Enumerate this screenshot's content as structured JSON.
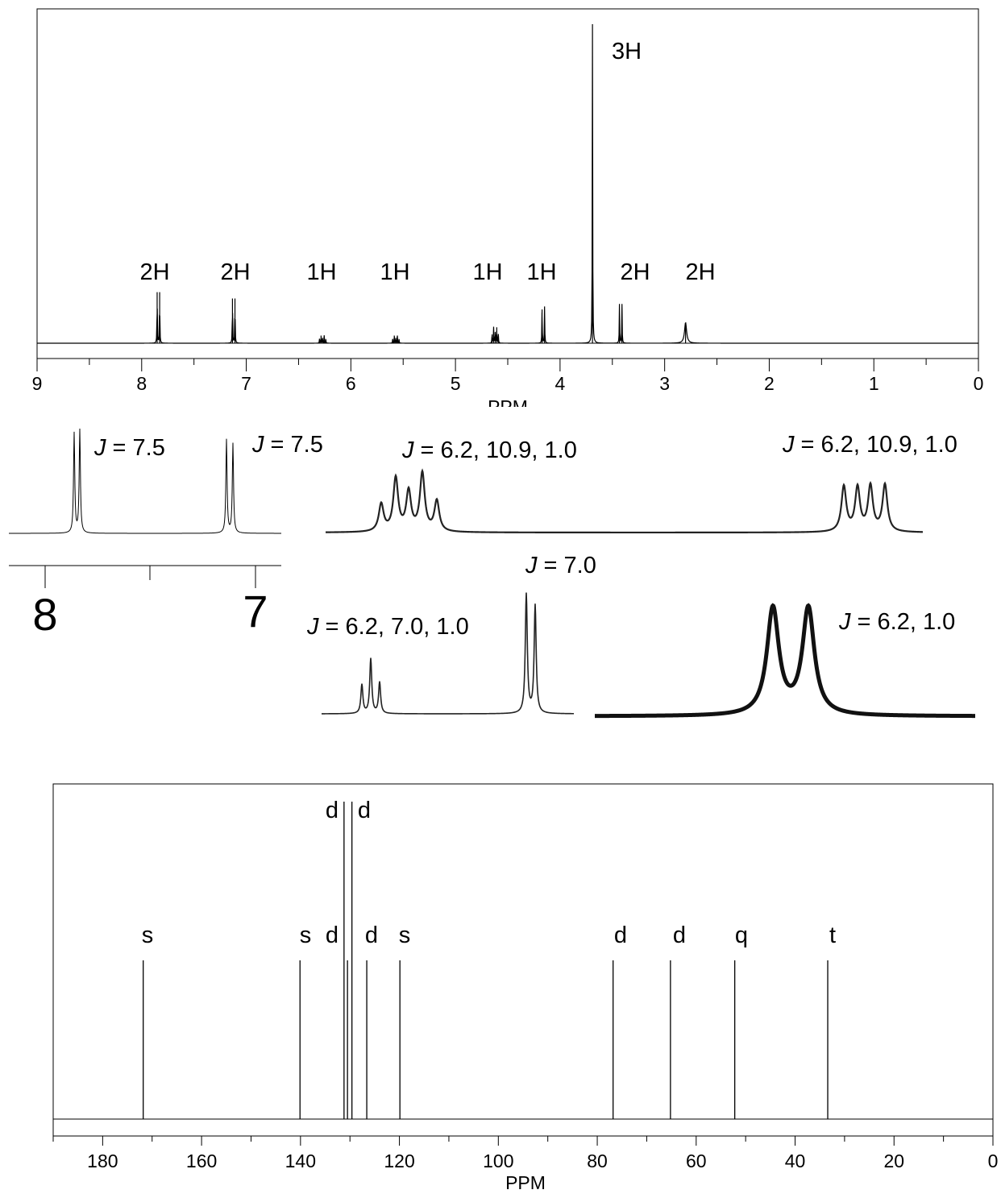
{
  "chart_data": [
    {
      "type": "line",
      "title": "",
      "xlabel": "PPM",
      "ylabel": "",
      "xlim": [
        9,
        0
      ],
      "x_ticks": [
        "9",
        "8",
        "7",
        "6",
        "5",
        "4",
        "3",
        "2",
        "1",
        "0"
      ],
      "grid": false,
      "peaks": [
        {
          "ppm": 7.84,
          "height": 0.16,
          "mult": "d",
          "integration": "2H"
        },
        {
          "ppm": 7.12,
          "height": 0.14,
          "mult": "d",
          "integration": "2H"
        },
        {
          "ppm": 6.27,
          "height": 0.024,
          "mult": "ddd",
          "integration": "1H"
        },
        {
          "ppm": 5.57,
          "height": 0.024,
          "mult": "ddd",
          "integration": "1H"
        },
        {
          "ppm": 4.62,
          "height": 0.05,
          "mult": "ddd",
          "integration": "1H"
        },
        {
          "ppm": 4.16,
          "height": 0.115,
          "mult": "dd",
          "integration": "1H"
        },
        {
          "ppm": 3.69,
          "height": 1.0,
          "mult": "s",
          "integration": "3H"
        },
        {
          "ppm": 3.42,
          "height": 0.123,
          "mult": "d",
          "integration": "2H"
        },
        {
          "ppm": 2.8,
          "height": 0.065,
          "mult": "br s",
          "integration": "2H"
        }
      ]
    },
    {
      "type": "line",
      "title": "",
      "insets": [
        {
          "id": "aromatic",
          "x_ticks": [
            "8",
            "7"
          ],
          "annotations": [
            "J = 7.5",
            "J = 7.5"
          ]
        },
        {
          "id": "vinyl-a",
          "annotation": "J = 6.2, 10.9, 1.0"
        },
        {
          "id": "vinyl-b",
          "annotation": "J = 6.2, 10.9, 1.0"
        },
        {
          "id": "oxy-a",
          "annotations": [
            "J = 6.2, 7.0, 1.0",
            "J = 7.0"
          ]
        },
        {
          "id": "oxy-b",
          "annotation": "J = 6.2, 1.0"
        }
      ]
    },
    {
      "type": "bar",
      "title": "",
      "xlabel": "PPM",
      "ylabel": "",
      "xlim": [
        190,
        0
      ],
      "x_ticks": [
        "180",
        "160",
        "140",
        "120",
        "100",
        "80",
        "60",
        "40",
        "20",
        "0"
      ],
      "grid": false,
      "peaks": [
        {
          "ppm": 171.8,
          "height": 0.5,
          "label": "s"
        },
        {
          "ppm": 140.1,
          "height": 0.5,
          "label": "s"
        },
        {
          "ppm": 131.2,
          "height": 1.0,
          "label": "d"
        },
        {
          "ppm": 130.5,
          "height": 0.5,
          "label": "d"
        },
        {
          "ppm": 129.6,
          "height": 1.0,
          "label": "d"
        },
        {
          "ppm": 126.6,
          "height": 0.5,
          "label": "d"
        },
        {
          "ppm": 119.9,
          "height": 0.5,
          "label": "s"
        },
        {
          "ppm": 76.8,
          "height": 0.5,
          "label": "d"
        },
        {
          "ppm": 65.2,
          "height": 0.5,
          "label": "d"
        },
        {
          "ppm": 52.2,
          "height": 0.5,
          "label": "q"
        },
        {
          "ppm": 33.4,
          "height": 0.5,
          "label": "t"
        }
      ]
    }
  ]
}
